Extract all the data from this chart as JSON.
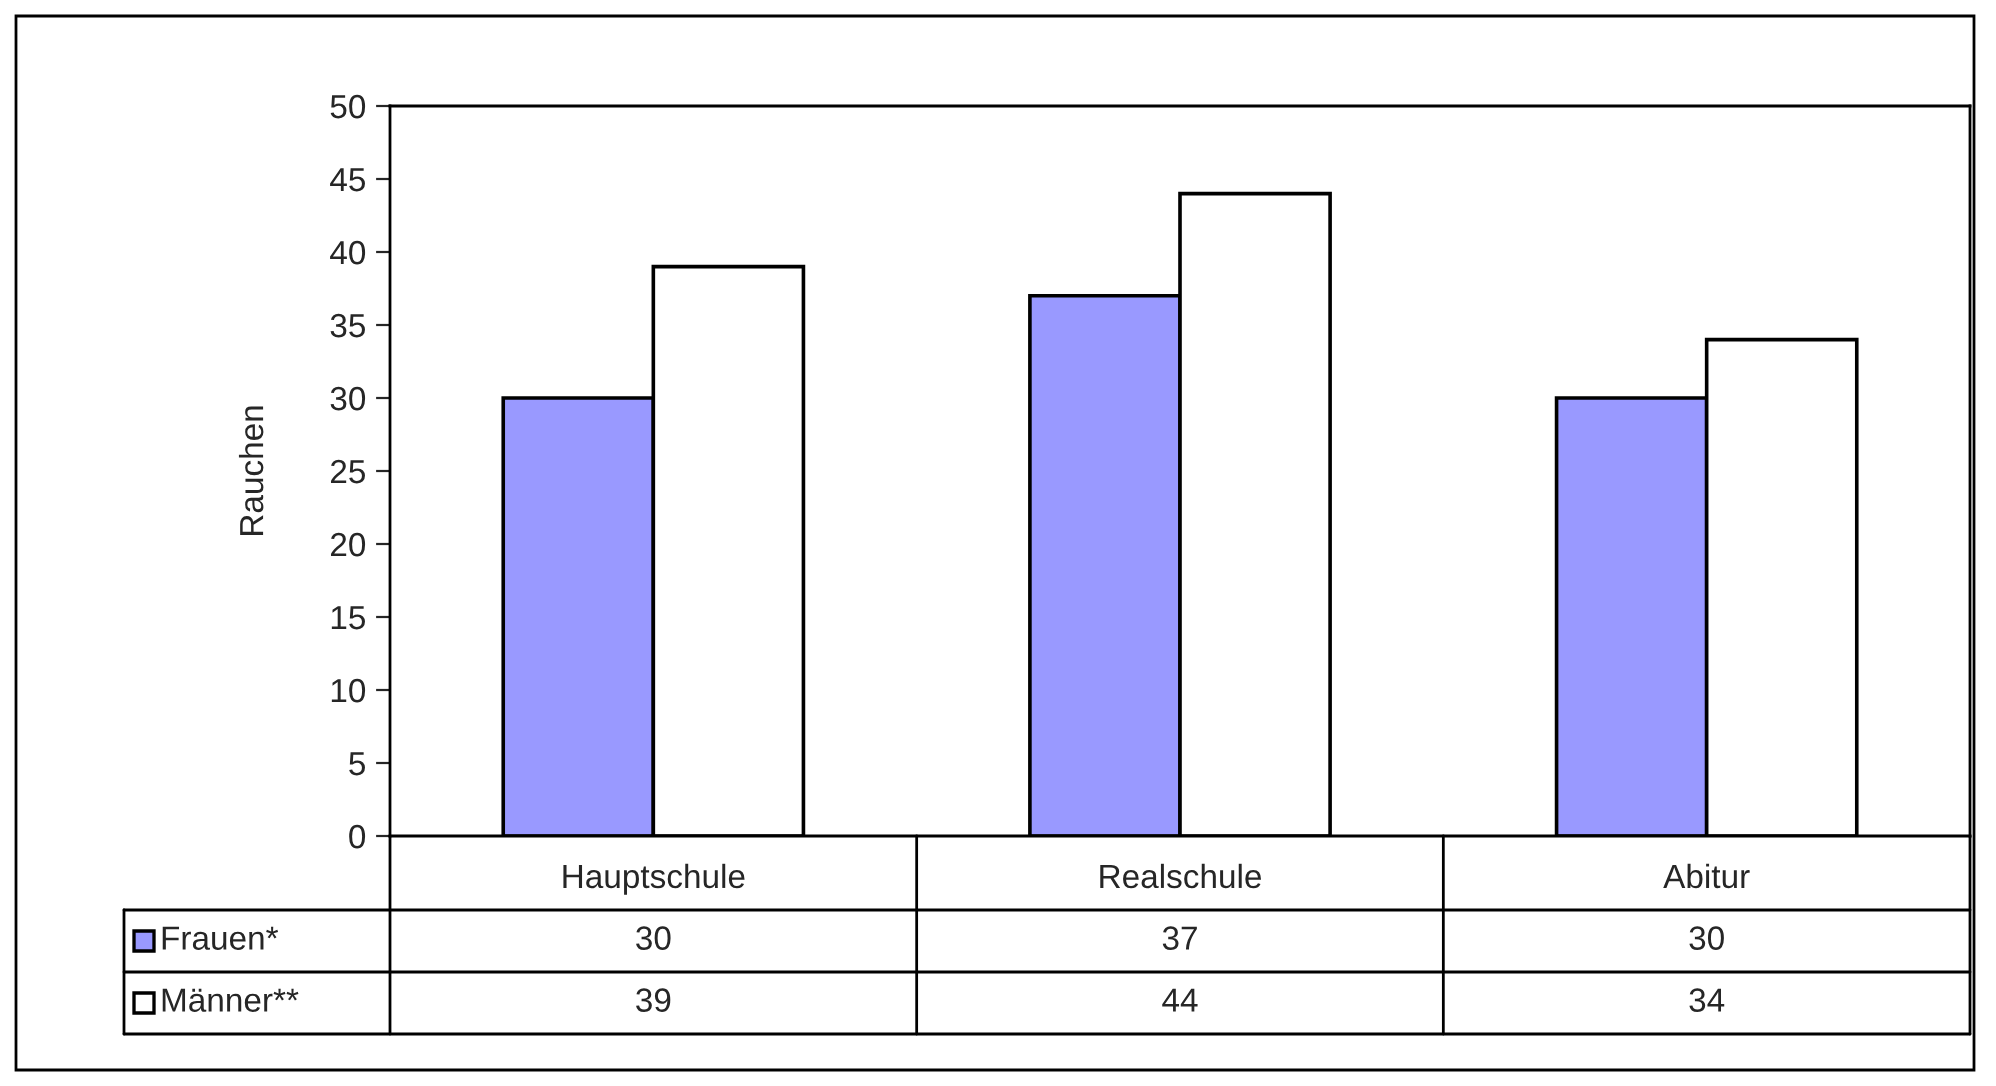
{
  "chart_data": {
    "type": "bar",
    "ylabel": "Rauchen",
    "categories": [
      "Hauptschule",
      "Realschule",
      "Abitur"
    ],
    "series": [
      {
        "name": "Frauen*",
        "color": "#9999ff",
        "values": [
          30,
          37,
          30
        ]
      },
      {
        "name": "Männer**",
        "color": "#ffffff",
        "values": [
          39,
          44,
          34
        ]
      }
    ],
    "ylim": [
      0,
      50
    ],
    "yticks": [
      0,
      5,
      10,
      15,
      20,
      25,
      30,
      35,
      40,
      45,
      50
    ],
    "grid": false,
    "legend": "bottom",
    "data_labels": true
  }
}
